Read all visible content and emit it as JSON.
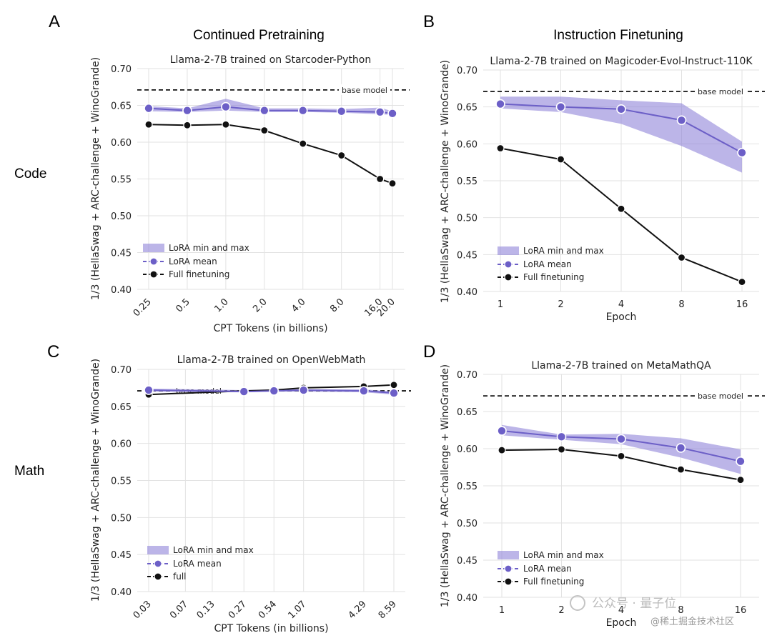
{
  "column_titles": [
    "Continued Pretraining",
    "Instruction Finetuning"
  ],
  "row_labels": [
    "Code",
    "Math"
  ],
  "colors": {
    "lora": "#6c5fc7",
    "lora_band": "#8f84d9",
    "full": "#111111",
    "base": "#111111",
    "grid": "#e2e2e2"
  },
  "watermark": {
    "main": "公众号 · 量子位",
    "sub": "@稀土掘金技术社区"
  },
  "chart_data": [
    {
      "panel": "A",
      "type": "line",
      "title": "Llama-2-7B trained on Starcoder-Python",
      "xlabel": "CPT Tokens (in billions)",
      "ylabel": "1/3 (HellaSwag + ARC-challenge + WinoGrande)",
      "x_scale": "log",
      "x": [
        0.25,
        0.5,
        1.0,
        2.0,
        4.0,
        8.0,
        16.0,
        20.0
      ],
      "xtick_labels": [
        "0.25",
        "0.5",
        "1.0",
        "2.0",
        "4.0",
        "8.0",
        "16.0",
        "20.0"
      ],
      "xtick_rotation": 45,
      "ylim": [
        0.4,
        0.7
      ],
      "yticks": [
        "0.40",
        "0.45",
        "0.50",
        "0.55",
        "0.60",
        "0.65",
        "0.70"
      ],
      "base_model": 0.671,
      "base_label": "base model",
      "lora_mean": [
        0.646,
        0.643,
        0.648,
        0.643,
        0.643,
        0.642,
        0.641,
        0.639
      ],
      "lora_min": [
        0.642,
        0.641,
        0.643,
        0.641,
        0.641,
        0.64,
        0.638,
        0.637
      ],
      "lora_max": [
        0.649,
        0.646,
        0.659,
        0.646,
        0.646,
        0.645,
        0.647,
        0.642
      ],
      "full": [
        0.624,
        0.623,
        0.624,
        0.616,
        0.598,
        0.582,
        0.55,
        0.544
      ],
      "legend": [
        "LoRA min and max",
        "LoRA mean",
        "Full finetuning"
      ]
    },
    {
      "panel": "B",
      "type": "line",
      "title": "Llama-2-7B trained on Magicoder-Evol-Instruct-110K",
      "xlabel": "Epoch",
      "ylabel": "1/3 (HellaSwag + ARC-challenge + WinoGrande)",
      "x_scale": "log",
      "x": [
        1,
        2,
        4,
        8,
        16
      ],
      "xtick_labels": [
        "1",
        "2",
        "4",
        "8",
        "16"
      ],
      "xtick_rotation": 0,
      "ylim": [
        0.4,
        0.7
      ],
      "yticks": [
        "0.40",
        "0.45",
        "0.50",
        "0.55",
        "0.60",
        "0.65",
        "0.70"
      ],
      "base_model": 0.671,
      "base_label": "base model",
      "lora_mean": [
        0.654,
        0.65,
        0.647,
        0.632,
        0.588
      ],
      "lora_min": [
        0.648,
        0.643,
        0.627,
        0.597,
        0.561
      ],
      "lora_max": [
        0.664,
        0.664,
        0.659,
        0.655,
        0.603
      ],
      "full": [
        0.594,
        0.579,
        0.512,
        0.446,
        0.413
      ],
      "legend": [
        "LoRA min and max",
        "LoRA mean",
        "Full finetuning"
      ]
    },
    {
      "panel": "C",
      "type": "line",
      "title": "Llama-2-7B trained on OpenWebMath",
      "xlabel": "CPT Tokens (in billions)",
      "ylabel": "1/3 (HellaSwag + ARC-challenge + WinoGrande)",
      "x_scale": "log",
      "x": [
        0.03,
        0.07,
        0.13,
        0.27,
        0.54,
        1.07,
        4.29,
        8.59
      ],
      "xtick_labels": [
        "0.03",
        "0.07",
        "0.13",
        "0.27",
        "0.54",
        "1.07",
        "4.29",
        "8.59"
      ],
      "xtick_rotation": 45,
      "ylim": [
        0.4,
        0.7
      ],
      "yticks": [
        "0.40",
        "0.45",
        "0.50",
        "0.55",
        "0.60",
        "0.65",
        "0.70"
      ],
      "base_model": 0.671,
      "base_label": "base model",
      "lora_x": [
        0.03,
        0.27,
        0.54,
        1.07,
        4.29,
        8.59
      ],
      "lora_mean": [
        0.672,
        0.67,
        0.671,
        0.672,
        0.671,
        0.668
      ],
      "lora_min": [
        0.67,
        0.669,
        0.67,
        0.67,
        0.669,
        0.666
      ],
      "lora_max": [
        0.674,
        0.672,
        0.673,
        0.673,
        0.673,
        0.67
      ],
      "full_x": [
        0.03,
        0.27,
        0.54,
        1.07,
        4.29,
        8.59
      ],
      "full": [
        0.666,
        0.671,
        0.672,
        0.675,
        0.677,
        0.679
      ],
      "legend": [
        "LoRA min and max",
        "LoRA mean",
        "full"
      ]
    },
    {
      "panel": "D",
      "type": "line",
      "title": "Llama-2-7B trained on MetaMathQA",
      "xlabel": "Epoch",
      "ylabel": "1/3 (HellaSwag + ARC-challenge + WinoGrande)",
      "x_scale": "log",
      "x": [
        1,
        2,
        4,
        8,
        16
      ],
      "xtick_labels": [
        "1",
        "2",
        "4",
        "8",
        "16"
      ],
      "xtick_rotation": 0,
      "ylim": [
        0.4,
        0.7
      ],
      "yticks": [
        "0.40",
        "0.45",
        "0.50",
        "0.55",
        "0.60",
        "0.65",
        "0.70"
      ],
      "base_model": 0.671,
      "base_label": "base model",
      "lora_mean": [
        0.624,
        0.616,
        0.613,
        0.601,
        0.583
      ],
      "lora_min": [
        0.618,
        0.612,
        0.606,
        0.588,
        0.566
      ],
      "lora_max": [
        0.632,
        0.619,
        0.62,
        0.614,
        0.599
      ],
      "full": [
        0.598,
        0.599,
        0.59,
        0.572,
        0.558
      ],
      "legend": [
        "LoRA min and max",
        "LoRA mean",
        "Full finetuning"
      ]
    }
  ]
}
